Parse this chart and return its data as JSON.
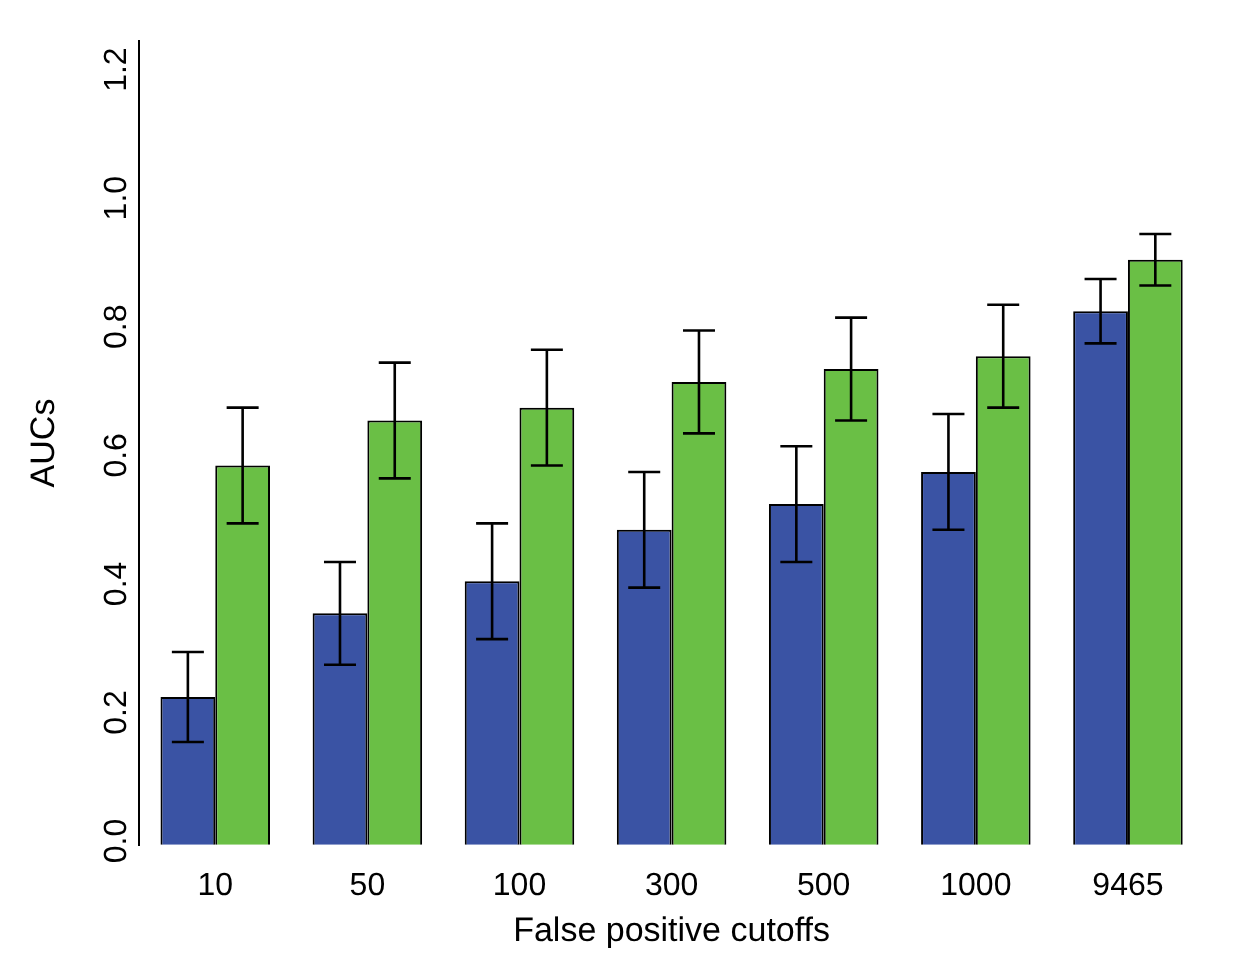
{
  "chart_data": {
    "type": "bar",
    "xlabel": "False positive cutoffs",
    "ylabel": "AUCs",
    "categories": [
      "10",
      "50",
      "100",
      "300",
      "500",
      "1000",
      "9465"
    ],
    "series": [
      {
        "color": "#3a53a4",
        "values": [
          0.23,
          0.36,
          0.41,
          0.49,
          0.53,
          0.58,
          0.83
        ],
        "errors": [
          0.07,
          0.08,
          0.09,
          0.09,
          0.09,
          0.09,
          0.05
        ]
      },
      {
        "color": "#6abf45",
        "values": [
          0.59,
          0.66,
          0.68,
          0.72,
          0.74,
          0.76,
          0.91
        ],
        "errors": [
          0.09,
          0.09,
          0.09,
          0.08,
          0.08,
          0.08,
          0.04
        ]
      }
    ],
    "ylim": [
      0,
      1.25
    ],
    "yticks": [
      {
        "value": 0,
        "label": "0.0"
      },
      0.2,
      0.4,
      0.6,
      0.8,
      {
        "value": 1,
        "label": "1.0"
      },
      1.2
    ],
    "grid": false,
    "legend": false
  }
}
